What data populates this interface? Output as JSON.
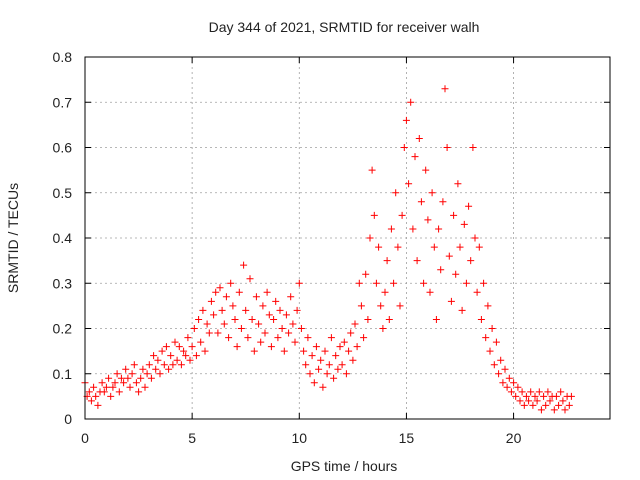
{
  "chart_data": {
    "type": "scatter",
    "title": "Day 344 of 2021, SRMTID for receiver walh",
    "xlabel": "GPS time / hours",
    "ylabel": "SRMTID / TECUs",
    "xlim": [
      0,
      24.5
    ],
    "ylim": [
      0,
      0.8
    ],
    "xticks": [
      0,
      5,
      10,
      15,
      20
    ],
    "xtick_labels": [
      "0",
      "5",
      "10",
      "15",
      "20"
    ],
    "yticks": [
      0,
      0.1,
      0.2,
      0.3,
      0.4,
      0.5,
      0.6,
      0.7,
      0.8
    ],
    "ytick_labels": [
      "0",
      "0.1",
      "0.2",
      "0.3",
      "0.4",
      "0.5",
      "0.6",
      "0.7",
      "0.8"
    ],
    "grid": true,
    "marker": "+",
    "color": "#ff0000",
    "series": [
      {
        "name": "SRMTID",
        "points": [
          [
            0.0,
            0.08
          ],
          [
            0.1,
            0.05
          ],
          [
            0.2,
            0.06
          ],
          [
            0.3,
            0.04
          ],
          [
            0.4,
            0.07
          ],
          [
            0.5,
            0.05
          ],
          [
            0.6,
            0.03
          ],
          [
            0.7,
            0.06
          ],
          [
            0.8,
            0.08
          ],
          [
            0.9,
            0.06
          ],
          [
            1.0,
            0.07
          ],
          [
            1.1,
            0.09
          ],
          [
            1.2,
            0.05
          ],
          [
            1.3,
            0.07
          ],
          [
            1.4,
            0.08
          ],
          [
            1.5,
            0.1
          ],
          [
            1.6,
            0.06
          ],
          [
            1.7,
            0.09
          ],
          [
            1.8,
            0.08
          ],
          [
            1.9,
            0.11
          ],
          [
            2.0,
            0.09
          ],
          [
            2.1,
            0.07
          ],
          [
            2.2,
            0.1
          ],
          [
            2.3,
            0.12
          ],
          [
            2.4,
            0.08
          ],
          [
            2.5,
            0.06
          ],
          [
            2.6,
            0.09
          ],
          [
            2.7,
            0.11
          ],
          [
            2.8,
            0.07
          ],
          [
            2.9,
            0.1
          ],
          [
            3.0,
            0.12
          ],
          [
            3.1,
            0.09
          ],
          [
            3.2,
            0.14
          ],
          [
            3.3,
            0.11
          ],
          [
            3.4,
            0.13
          ],
          [
            3.5,
            0.1
          ],
          [
            3.6,
            0.15
          ],
          [
            3.7,
            0.12
          ],
          [
            3.8,
            0.16
          ],
          [
            3.9,
            0.11
          ],
          [
            4.0,
            0.14
          ],
          [
            4.1,
            0.12
          ],
          [
            4.2,
            0.17
          ],
          [
            4.3,
            0.13
          ],
          [
            4.4,
            0.16
          ],
          [
            4.5,
            0.12
          ],
          [
            4.6,
            0.15
          ],
          [
            4.7,
            0.14
          ],
          [
            4.8,
            0.18
          ],
          [
            4.9,
            0.13
          ],
          [
            5.0,
            0.16
          ],
          [
            5.1,
            0.2
          ],
          [
            5.2,
            0.14
          ],
          [
            5.3,
            0.22
          ],
          [
            5.4,
            0.17
          ],
          [
            5.5,
            0.24
          ],
          [
            5.6,
            0.15
          ],
          [
            5.7,
            0.21
          ],
          [
            5.8,
            0.19
          ],
          [
            5.9,
            0.26
          ],
          [
            6.0,
            0.23
          ],
          [
            6.1,
            0.28
          ],
          [
            6.2,
            0.19
          ],
          [
            6.3,
            0.29
          ],
          [
            6.4,
            0.24
          ],
          [
            6.5,
            0.21
          ],
          [
            6.6,
            0.27
          ],
          [
            6.7,
            0.18
          ],
          [
            6.8,
            0.3
          ],
          [
            6.9,
            0.25
          ],
          [
            7.0,
            0.22
          ],
          [
            7.1,
            0.16
          ],
          [
            7.2,
            0.28
          ],
          [
            7.3,
            0.2
          ],
          [
            7.4,
            0.34
          ],
          [
            7.5,
            0.24
          ],
          [
            7.6,
            0.18
          ],
          [
            7.7,
            0.31
          ],
          [
            7.8,
            0.22
          ],
          [
            7.9,
            0.15
          ],
          [
            8.0,
            0.27
          ],
          [
            8.1,
            0.21
          ],
          [
            8.2,
            0.17
          ],
          [
            8.3,
            0.25
          ],
          [
            8.4,
            0.19
          ],
          [
            8.5,
            0.28
          ],
          [
            8.6,
            0.23
          ],
          [
            8.7,
            0.16
          ],
          [
            8.8,
            0.22
          ],
          [
            8.9,
            0.26
          ],
          [
            9.0,
            0.18
          ],
          [
            9.1,
            0.24
          ],
          [
            9.2,
            0.2
          ],
          [
            9.3,
            0.15
          ],
          [
            9.4,
            0.23
          ],
          [
            9.5,
            0.19
          ],
          [
            9.6,
            0.27
          ],
          [
            9.7,
            0.21
          ],
          [
            9.8,
            0.17
          ],
          [
            9.9,
            0.24
          ],
          [
            10.0,
            0.3
          ],
          [
            10.1,
            0.2
          ],
          [
            10.2,
            0.15
          ],
          [
            10.3,
            0.12
          ],
          [
            10.4,
            0.18
          ],
          [
            10.5,
            0.1
          ],
          [
            10.6,
            0.14
          ],
          [
            10.7,
            0.08
          ],
          [
            10.8,
            0.16
          ],
          [
            10.9,
            0.11
          ],
          [
            11.0,
            0.13
          ],
          [
            11.1,
            0.07
          ],
          [
            11.2,
            0.15
          ],
          [
            11.3,
            0.1
          ],
          [
            11.4,
            0.12
          ],
          [
            11.5,
            0.18
          ],
          [
            11.6,
            0.09
          ],
          [
            11.7,
            0.14
          ],
          [
            11.8,
            0.11
          ],
          [
            11.9,
            0.16
          ],
          [
            12.0,
            0.12
          ],
          [
            12.1,
            0.17
          ],
          [
            12.2,
            0.1
          ],
          [
            12.3,
            0.15
          ],
          [
            12.4,
            0.19
          ],
          [
            12.5,
            0.13
          ],
          [
            12.6,
            0.21
          ],
          [
            12.7,
            0.16
          ],
          [
            12.8,
            0.3
          ],
          [
            12.9,
            0.25
          ],
          [
            13.0,
            0.18
          ],
          [
            13.1,
            0.32
          ],
          [
            13.2,
            0.22
          ],
          [
            13.3,
            0.4
          ],
          [
            13.4,
            0.55
          ],
          [
            13.5,
            0.45
          ],
          [
            13.6,
            0.3
          ],
          [
            13.7,
            0.38
          ],
          [
            13.8,
            0.25
          ],
          [
            13.9,
            0.2
          ],
          [
            14.0,
            0.28
          ],
          [
            14.1,
            0.35
          ],
          [
            14.2,
            0.22
          ],
          [
            14.3,
            0.42
          ],
          [
            14.4,
            0.3
          ],
          [
            14.5,
            0.5
          ],
          [
            14.6,
            0.38
          ],
          [
            14.7,
            0.25
          ],
          [
            14.8,
            0.45
          ],
          [
            14.9,
            0.6
          ],
          [
            15.0,
            0.66
          ],
          [
            15.1,
            0.52
          ],
          [
            15.2,
            0.7
          ],
          [
            15.3,
            0.42
          ],
          [
            15.4,
            0.58
          ],
          [
            15.5,
            0.35
          ],
          [
            15.6,
            0.62
          ],
          [
            15.7,
            0.48
          ],
          [
            15.8,
            0.3
          ],
          [
            15.9,
            0.55
          ],
          [
            16.0,
            0.44
          ],
          [
            16.1,
            0.28
          ],
          [
            16.2,
            0.5
          ],
          [
            16.3,
            0.38
          ],
          [
            16.4,
            0.22
          ],
          [
            16.5,
            0.42
          ],
          [
            16.6,
            0.33
          ],
          [
            16.7,
            0.48
          ],
          [
            16.8,
            0.73
          ],
          [
            16.9,
            0.6
          ],
          [
            17.0,
            0.36
          ],
          [
            17.1,
            0.26
          ],
          [
            17.2,
            0.45
          ],
          [
            17.3,
            0.32
          ],
          [
            17.4,
            0.52
          ],
          [
            17.5,
            0.38
          ],
          [
            17.6,
            0.24
          ],
          [
            17.7,
            0.43
          ],
          [
            17.8,
            0.3
          ],
          [
            17.9,
            0.47
          ],
          [
            18.0,
            0.35
          ],
          [
            18.1,
            0.6
          ],
          [
            18.2,
            0.4
          ],
          [
            18.3,
            0.28
          ],
          [
            18.4,
            0.38
          ],
          [
            18.5,
            0.22
          ],
          [
            18.6,
            0.3
          ],
          [
            18.7,
            0.18
          ],
          [
            18.8,
            0.25
          ],
          [
            18.9,
            0.15
          ],
          [
            19.0,
            0.2
          ],
          [
            19.1,
            0.12
          ],
          [
            19.2,
            0.17
          ],
          [
            19.3,
            0.1
          ],
          [
            19.4,
            0.13
          ],
          [
            19.5,
            0.08
          ],
          [
            19.6,
            0.11
          ],
          [
            19.7,
            0.07
          ],
          [
            19.8,
            0.09
          ],
          [
            19.9,
            0.06
          ],
          [
            20.0,
            0.08
          ],
          [
            20.1,
            0.05
          ],
          [
            20.2,
            0.07
          ],
          [
            20.3,
            0.04
          ],
          [
            20.4,
            0.06
          ],
          [
            20.5,
            0.03
          ],
          [
            20.6,
            0.05
          ],
          [
            20.7,
            0.04
          ],
          [
            20.8,
            0.06
          ],
          [
            20.9,
            0.03
          ],
          [
            21.0,
            0.05
          ],
          [
            21.1,
            0.04
          ],
          [
            21.2,
            0.06
          ],
          [
            21.3,
            0.02
          ],
          [
            21.4,
            0.05
          ],
          [
            21.5,
            0.03
          ],
          [
            21.6,
            0.06
          ],
          [
            21.7,
            0.04
          ],
          [
            21.8,
            0.05
          ],
          [
            21.9,
            0.02
          ],
          [
            22.0,
            0.05
          ],
          [
            22.1,
            0.03
          ],
          [
            22.2,
            0.06
          ],
          [
            22.3,
            0.04
          ],
          [
            22.4,
            0.02
          ],
          [
            22.5,
            0.05
          ],
          [
            22.6,
            0.03
          ],
          [
            22.7,
            0.05
          ]
        ]
      }
    ]
  }
}
